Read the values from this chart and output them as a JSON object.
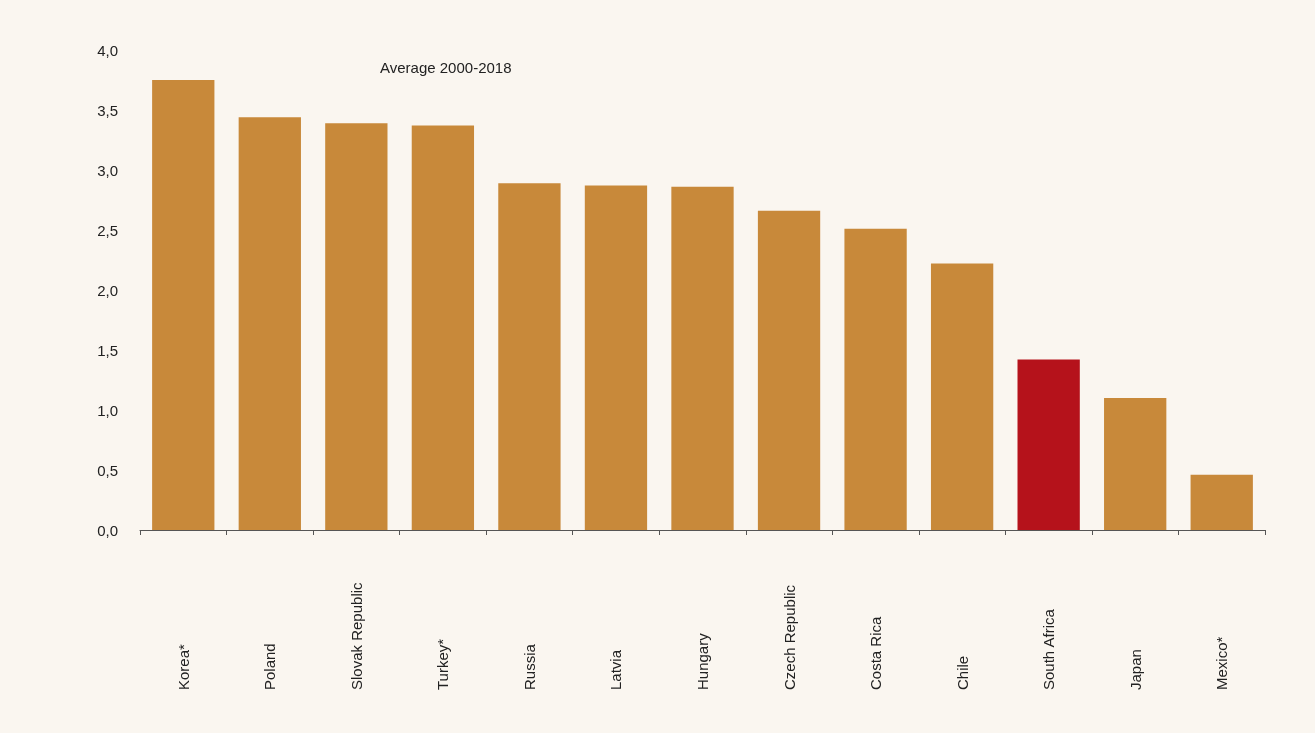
{
  "chart_data": {
    "type": "bar",
    "annotations": [
      "Average 2000-2018"
    ],
    "categories": [
      "Korea*",
      "Poland",
      "Slovak Republic",
      "Turkey*",
      "Russia",
      "Latvia",
      "Hungary",
      "Czech Republic",
      "Costa Rica",
      "Chile",
      "South Africa",
      "Japan",
      "Mexico*"
    ],
    "values": [
      3.75,
      3.44,
      3.39,
      3.37,
      2.89,
      2.87,
      2.86,
      2.66,
      2.51,
      2.22,
      1.42,
      1.1,
      0.46
    ],
    "colors": [
      "#c8893a",
      "#c8893a",
      "#c8893a",
      "#c8893a",
      "#c8893a",
      "#c8893a",
      "#c8893a",
      "#c8893a",
      "#c8893a",
      "#c8893a",
      "#b5121b",
      "#c8893a",
      "#c8893a"
    ],
    "ylim": [
      0,
      4
    ],
    "yticks": [
      {
        "value": 0,
        "label": "0,0"
      },
      {
        "value": 0.5,
        "label": "0,5"
      },
      {
        "value": 1,
        "label": "1,0"
      },
      {
        "value": 1.5,
        "label": "1,5"
      },
      {
        "value": 2,
        "label": "2,0"
      },
      {
        "value": 2.5,
        "label": "2,5"
      },
      {
        "value": 3,
        "label": "3,0"
      },
      {
        "value": 3.5,
        "label": "3,5"
      },
      {
        "value": 4,
        "label": "4,0"
      }
    ],
    "grid": false
  }
}
